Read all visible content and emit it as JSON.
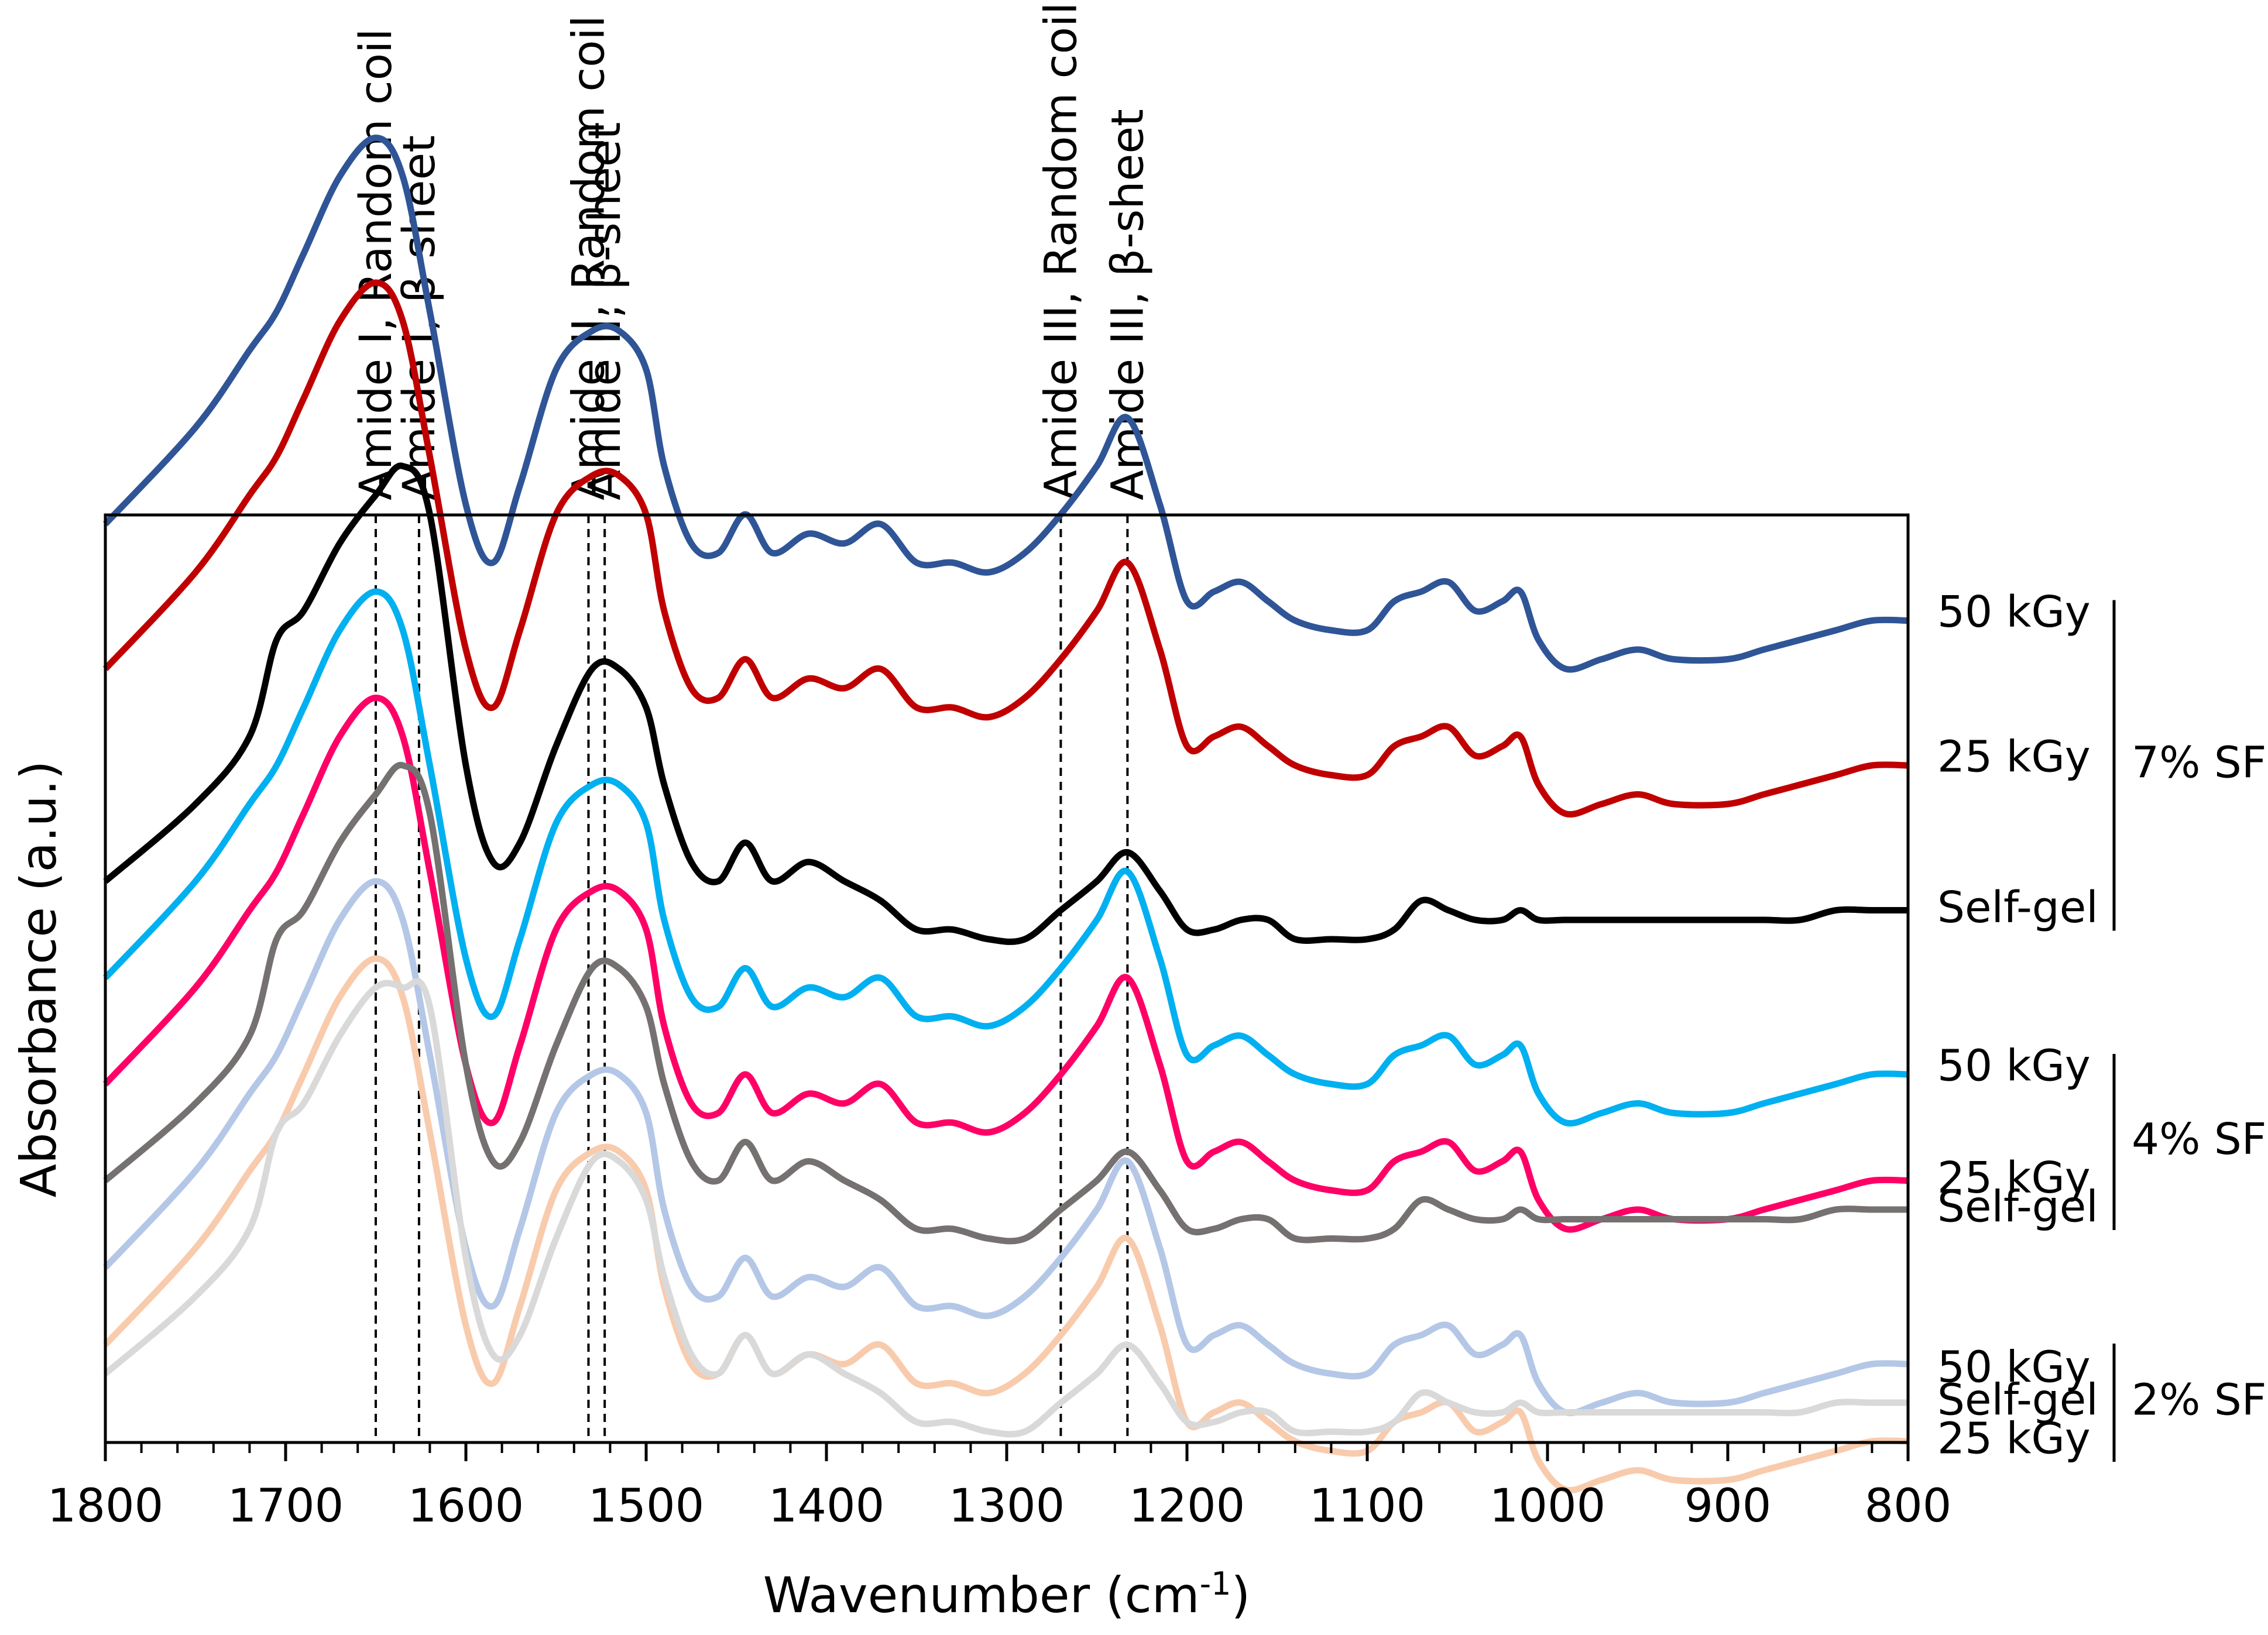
{
  "chart_data": {
    "type": "line",
    "xlabel_main": "Wavenumber (cm",
    "xlabel_sup": "-1",
    "xlabel_end": ")",
    "ylabel": "Absorbance (a.u.)",
    "xlim": [
      1800,
      800
    ],
    "x_reversed": true,
    "x_ticks": [
      1800,
      1700,
      1600,
      1500,
      1400,
      1300,
      1200,
      1100,
      1000,
      900,
      800
    ],
    "y_ticks_shown": false,
    "grid": false,
    "annotations": [
      {
        "x": 1650,
        "text": "Amide I, Random coil"
      },
      {
        "x": 1626,
        "text": "Amide I, β-sheet"
      },
      {
        "x": 1532,
        "text": "Amide II, Random coil"
      },
      {
        "x": 1523,
        "text": "Amide II, β-sheet"
      },
      {
        "x": 1270,
        "text": "Amide III, Random coil"
      },
      {
        "x": 1233,
        "text": "Amide III, β-sheet"
      }
    ],
    "groups": [
      {
        "label": "7% SF",
        "series": [
          0,
          1,
          2
        ]
      },
      {
        "label": "4% SF",
        "series": [
          3,
          4,
          5
        ]
      },
      {
        "label": "2% SF",
        "series": [
          6,
          7,
          8
        ]
      }
    ],
    "x": [
      1800,
      1750,
      1720,
      1705,
      1690,
      1670,
      1650,
      1635,
      1620,
      1600,
      1585,
      1570,
      1550,
      1530,
      1515,
      1500,
      1490,
      1475,
      1460,
      1445,
      1430,
      1410,
      1390,
      1370,
      1350,
      1330,
      1310,
      1290,
      1270,
      1250,
      1233,
      1215,
      1200,
      1185,
      1170,
      1155,
      1140,
      1120,
      1100,
      1085,
      1070,
      1055,
      1040,
      1025,
      1015,
      1005,
      990,
      970,
      950,
      930,
      900,
      880,
      860,
      840,
      820,
      800
    ],
    "series": [
      {
        "label": "50 kGy",
        "group": "7% SF",
        "color": "#2f5597",
        "offset": 0.93,
        "values": [
          0.0,
          0.1,
          0.18,
          0.22,
          0.28,
          0.36,
          0.4,
          0.36,
          0.22,
          0.02,
          -0.04,
          0.04,
          0.16,
          0.2,
          0.2,
          0.16,
          0.06,
          -0.02,
          -0.03,
          0.01,
          -0.03,
          -0.01,
          -0.02,
          0.0,
          -0.04,
          -0.04,
          -0.05,
          -0.03,
          0.01,
          0.06,
          0.11,
          0.02,
          -0.08,
          -0.07,
          -0.06,
          -0.08,
          -0.1,
          -0.11,
          -0.11,
          -0.08,
          -0.07,
          -0.06,
          -0.09,
          -0.08,
          -0.07,
          -0.12,
          -0.15,
          -0.14,
          -0.13,
          -0.14,
          -0.14,
          -0.13,
          -0.12,
          -0.11,
          -0.1,
          -0.1
        ]
      },
      {
        "label": "25 kGy",
        "group": "7% SF",
        "color": "#c00000",
        "offset": 0.78,
        "values": [
          0.0,
          0.1,
          0.18,
          0.22,
          0.28,
          0.36,
          0.4,
          0.36,
          0.22,
          0.02,
          -0.04,
          0.04,
          0.16,
          0.2,
          0.2,
          0.16,
          0.06,
          -0.02,
          -0.03,
          0.01,
          -0.03,
          -0.01,
          -0.02,
          0.0,
          -0.04,
          -0.04,
          -0.05,
          -0.03,
          0.01,
          0.06,
          0.11,
          0.02,
          -0.08,
          -0.07,
          -0.06,
          -0.08,
          -0.1,
          -0.11,
          -0.11,
          -0.08,
          -0.07,
          -0.06,
          -0.09,
          -0.08,
          -0.07,
          -0.12,
          -0.15,
          -0.14,
          -0.13,
          -0.14,
          -0.14,
          -0.13,
          -0.12,
          -0.11,
          -0.1,
          -0.1
        ]
      },
      {
        "label": "Self-gel",
        "group": "7% SF",
        "color": "#000000",
        "offset": 0.56,
        "values": [
          0.0,
          0.08,
          0.15,
          0.25,
          0.28,
          0.35,
          0.4,
          0.43,
          0.38,
          0.12,
          0.02,
          0.04,
          0.14,
          0.22,
          0.22,
          0.18,
          0.1,
          0.02,
          0.0,
          0.04,
          0.0,
          0.02,
          0.0,
          -0.02,
          -0.05,
          -0.05,
          -0.06,
          -0.06,
          -0.03,
          0.0,
          0.03,
          -0.01,
          -0.05,
          -0.05,
          -0.04,
          -0.04,
          -0.06,
          -0.06,
          -0.06,
          -0.05,
          -0.02,
          -0.03,
          -0.04,
          -0.04,
          -0.03,
          -0.04,
          -0.04,
          -0.04,
          -0.04,
          -0.04,
          -0.04,
          -0.04,
          -0.04,
          -0.03,
          -0.03,
          -0.03
        ]
      },
      {
        "label": "50 kGy",
        "group": "4% SF",
        "color": "#00b0f0",
        "offset": 0.46,
        "values": [
          0.0,
          0.1,
          0.18,
          0.22,
          0.28,
          0.36,
          0.4,
          0.36,
          0.22,
          0.02,
          -0.04,
          0.04,
          0.16,
          0.2,
          0.2,
          0.16,
          0.06,
          -0.02,
          -0.03,
          0.01,
          -0.03,
          -0.01,
          -0.02,
          0.0,
          -0.04,
          -0.04,
          -0.05,
          -0.03,
          0.01,
          0.06,
          0.11,
          0.02,
          -0.08,
          -0.07,
          -0.06,
          -0.08,
          -0.1,
          -0.11,
          -0.11,
          -0.08,
          -0.07,
          -0.06,
          -0.09,
          -0.08,
          -0.07,
          -0.12,
          -0.15,
          -0.14,
          -0.13,
          -0.14,
          -0.14,
          -0.13,
          -0.12,
          -0.11,
          -0.1,
          -0.1
        ]
      },
      {
        "label": "25 kGy",
        "group": "4% SF",
        "color": "#ff0066",
        "offset": 0.35,
        "values": [
          0.0,
          0.1,
          0.18,
          0.22,
          0.28,
          0.36,
          0.4,
          0.36,
          0.22,
          0.02,
          -0.04,
          0.04,
          0.16,
          0.2,
          0.2,
          0.16,
          0.06,
          -0.02,
          -0.03,
          0.01,
          -0.03,
          -0.01,
          -0.02,
          0.0,
          -0.04,
          -0.04,
          -0.05,
          -0.03,
          0.01,
          0.06,
          0.11,
          0.02,
          -0.08,
          -0.07,
          -0.06,
          -0.08,
          -0.1,
          -0.11,
          -0.11,
          -0.08,
          -0.07,
          -0.06,
          -0.09,
          -0.08,
          -0.07,
          -0.12,
          -0.15,
          -0.14,
          -0.13,
          -0.14,
          -0.14,
          -0.13,
          -0.12,
          -0.11,
          -0.1,
          -0.1
        ]
      },
      {
        "label": "Self-gel",
        "group": "4% SF",
        "color": "#767171",
        "offset": 0.25,
        "values": [
          0.0,
          0.08,
          0.15,
          0.25,
          0.28,
          0.35,
          0.4,
          0.43,
          0.38,
          0.12,
          0.02,
          0.04,
          0.14,
          0.22,
          0.22,
          0.18,
          0.1,
          0.02,
          0.0,
          0.04,
          0.0,
          0.02,
          0.0,
          -0.02,
          -0.05,
          -0.05,
          -0.06,
          -0.06,
          -0.03,
          0.0,
          0.03,
          -0.01,
          -0.05,
          -0.05,
          -0.04,
          -0.04,
          -0.06,
          -0.06,
          -0.06,
          -0.05,
          -0.02,
          -0.03,
          -0.04,
          -0.04,
          -0.03,
          -0.04,
          -0.04,
          -0.04,
          -0.04,
          -0.04,
          -0.04,
          -0.04,
          -0.04,
          -0.03,
          -0.03,
          -0.03
        ]
      },
      {
        "label": "50 kGy",
        "group": "2% SF",
        "color": "#b4c7e7",
        "offset": 0.16,
        "values": [
          0.0,
          0.1,
          0.18,
          0.22,
          0.28,
          0.36,
          0.4,
          0.36,
          0.22,
          0.02,
          -0.04,
          0.04,
          0.16,
          0.2,
          0.2,
          0.16,
          0.06,
          -0.02,
          -0.03,
          0.01,
          -0.03,
          -0.01,
          -0.02,
          0.0,
          -0.04,
          -0.04,
          -0.05,
          -0.03,
          0.01,
          0.06,
          0.11,
          0.02,
          -0.08,
          -0.07,
          -0.06,
          -0.08,
          -0.1,
          -0.11,
          -0.11,
          -0.08,
          -0.07,
          -0.06,
          -0.09,
          -0.08,
          -0.07,
          -0.12,
          -0.15,
          -0.14,
          -0.13,
          -0.14,
          -0.14,
          -0.13,
          -0.12,
          -0.11,
          -0.1,
          -0.1
        ]
      },
      {
        "label": "25 kGy",
        "group": "2% SF",
        "color": "#f8cbad",
        "offset": 0.08,
        "values": [
          0.0,
          0.1,
          0.18,
          0.22,
          0.28,
          0.36,
          0.4,
          0.36,
          0.22,
          0.02,
          -0.04,
          0.04,
          0.16,
          0.2,
          0.2,
          0.16,
          0.06,
          -0.02,
          -0.03,
          0.01,
          -0.03,
          -0.01,
          -0.02,
          0.0,
          -0.04,
          -0.04,
          -0.05,
          -0.03,
          0.01,
          0.06,
          0.11,
          0.02,
          -0.08,
          -0.07,
          -0.06,
          -0.08,
          -0.1,
          -0.11,
          -0.11,
          -0.08,
          -0.07,
          -0.06,
          -0.09,
          -0.08,
          -0.07,
          -0.12,
          -0.15,
          -0.14,
          -0.13,
          -0.14,
          -0.14,
          -0.13,
          -0.12,
          -0.11,
          -0.1,
          -0.1
        ]
      },
      {
        "label": "Self-gel",
        "group": "2% SF",
        "color": "#d9d9d9",
        "offset": 0.05,
        "values": [
          0.0,
          0.08,
          0.15,
          0.25,
          0.28,
          0.35,
          0.4,
          0.4,
          0.38,
          0.12,
          0.02,
          0.04,
          0.14,
          0.22,
          0.22,
          0.18,
          0.1,
          0.02,
          0.0,
          0.04,
          0.0,
          0.02,
          0.0,
          -0.02,
          -0.05,
          -0.05,
          -0.06,
          -0.06,
          -0.03,
          0.0,
          0.03,
          -0.01,
          -0.05,
          -0.05,
          -0.04,
          -0.04,
          -0.06,
          -0.06,
          -0.06,
          -0.05,
          -0.02,
          -0.03,
          -0.04,
          -0.04,
          -0.03,
          -0.04,
          -0.04,
          -0.04,
          -0.04,
          -0.04,
          -0.04,
          -0.04,
          -0.04,
          -0.03,
          -0.03,
          -0.03
        ]
      }
    ]
  }
}
